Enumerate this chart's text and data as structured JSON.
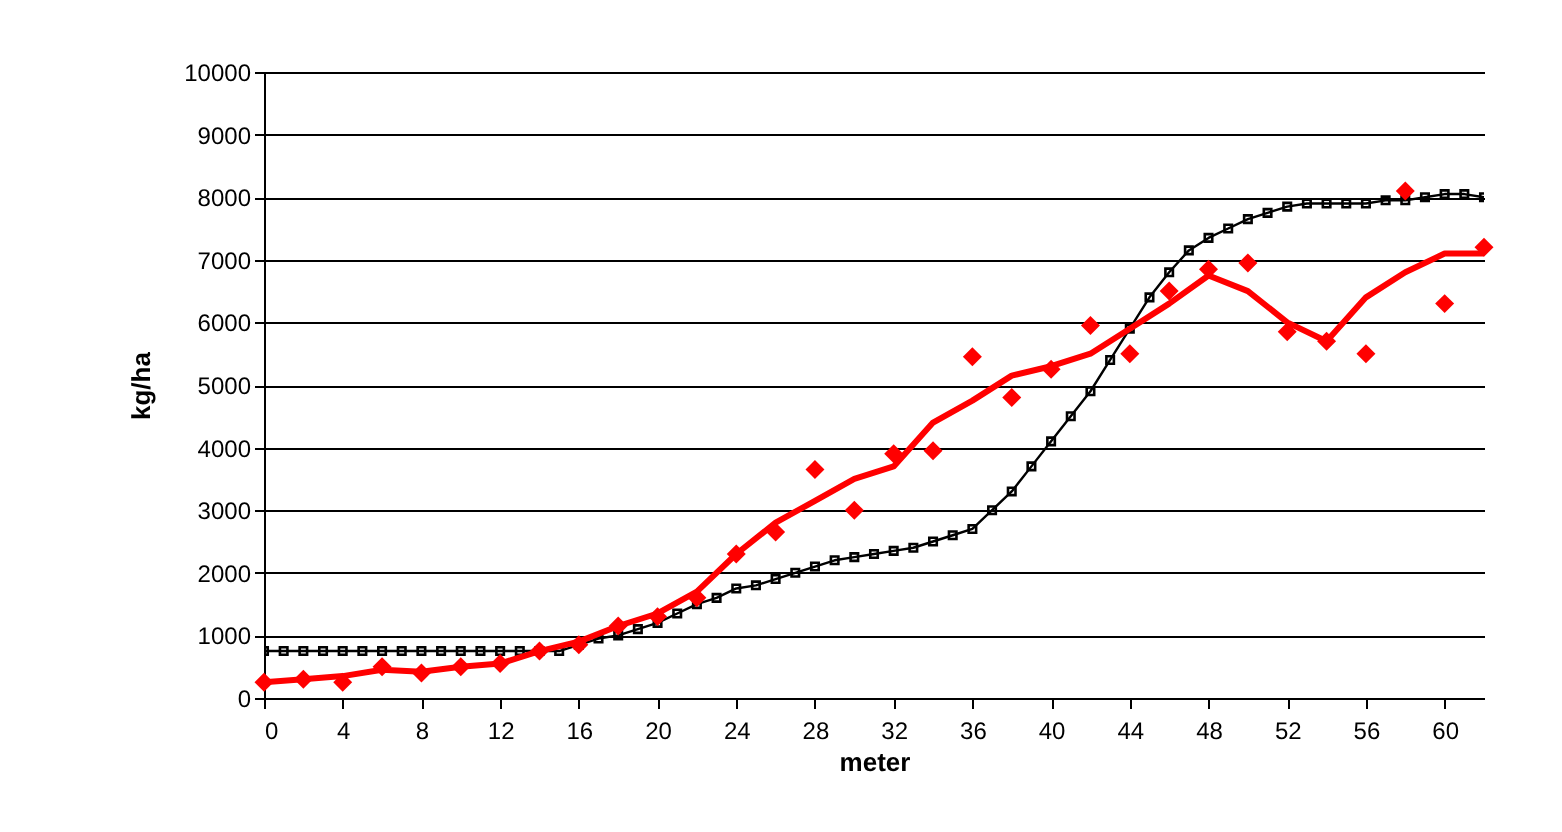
{
  "chart_data": {
    "type": "line",
    "xlabel": "meter",
    "ylabel": "kg/ha",
    "xlim": [
      0,
      62
    ],
    "xticks": [
      0,
      4,
      8,
      12,
      16,
      20,
      24,
      28,
      32,
      36,
      40,
      44,
      48,
      52,
      56,
      60
    ],
    "ylim": [
      0,
      10000
    ],
    "yticks": [
      0,
      1000,
      2000,
      3000,
      4000,
      5000,
      6000,
      7000,
      8000,
      9000,
      10000
    ],
    "grid": "y",
    "series": [
      {
        "color": "#000000",
        "marker": "square",
        "x": [
          0,
          1,
          2,
          3,
          4,
          5,
          6,
          7,
          8,
          9,
          10,
          11,
          12,
          13,
          14,
          15,
          16,
          17,
          18,
          19,
          20,
          21,
          22,
          23,
          24,
          25,
          26,
          27,
          28,
          29,
          30,
          31,
          32,
          33,
          34,
          35,
          36,
          37,
          38,
          39,
          40,
          41,
          42,
          43,
          44,
          45,
          46,
          47,
          48,
          49,
          50,
          51,
          52,
          53,
          54,
          55,
          56,
          57,
          58,
          59,
          60,
          61,
          62
        ],
        "values": [
          750,
          750,
          750,
          750,
          750,
          750,
          750,
          750,
          750,
          750,
          750,
          750,
          750,
          750,
          750,
          750,
          850,
          950,
          1000,
          1100,
          1200,
          1350,
          1500,
          1600,
          1750,
          1800,
          1900,
          2000,
          2100,
          2200,
          2250,
          2300,
          2350,
          2400,
          2500,
          2600,
          2700,
          3000,
          3300,
          3700,
          4100,
          4500,
          4900,
          5400,
          5900,
          6400,
          6800,
          7150,
          7350,
          7500,
          7650,
          7750,
          7850,
          7900,
          7900,
          7900,
          7900,
          7950,
          7950,
          8000,
          8050,
          8050,
          8000
        ]
      },
      {
        "color": "#ff0000",
        "marker": "none",
        "x": [
          0,
          2,
          4,
          6,
          8,
          10,
          12,
          14,
          16,
          18,
          20,
          22,
          24,
          26,
          28,
          30,
          32,
          34,
          36,
          38,
          40,
          42,
          44,
          46,
          48,
          50,
          52,
          54,
          56,
          58,
          60,
          62
        ],
        "values": [
          250,
          300,
          350,
          450,
          420,
          500,
          550,
          750,
          900,
          1150,
          1350,
          1700,
          2300,
          2800,
          3150,
          3500,
          3700,
          4400,
          4750,
          5150,
          5300,
          5500,
          5900,
          6300,
          6750,
          6500,
          6000,
          5700,
          6400,
          6800,
          7100,
          7100
        ]
      },
      {
        "type": "scatter",
        "color": "#ff0000",
        "marker": "diamond",
        "x": [
          0,
          2,
          4,
          6,
          8,
          10,
          12,
          14,
          16,
          18,
          20,
          22,
          24,
          26,
          28,
          30,
          32,
          34,
          36,
          38,
          40,
          42,
          44,
          46,
          48,
          50,
          52,
          54,
          56,
          58,
          60,
          62
        ],
        "values": [
          250,
          300,
          250,
          500,
          400,
          500,
          550,
          750,
          850,
          1150,
          1300,
          1600,
          2300,
          2650,
          3650,
          3000,
          3900,
          3950,
          5450,
          4800,
          5250,
          5950,
          5500,
          6500,
          6850,
          6950,
          5850,
          5700,
          5500,
          8100,
          6300,
          7200
        ]
      }
    ]
  }
}
